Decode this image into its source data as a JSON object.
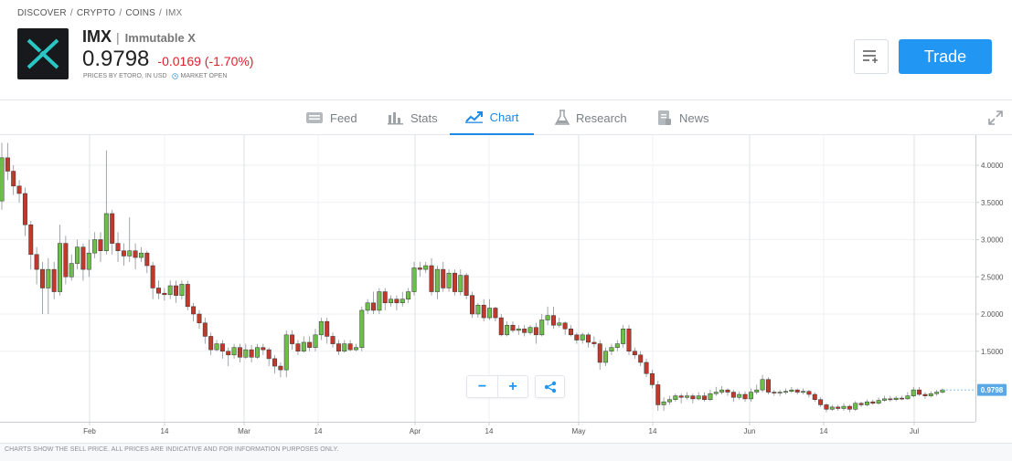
{
  "breadcrumb": [
    "DISCOVER",
    "CRYPTO",
    "COINS",
    "IMX"
  ],
  "header": {
    "ticker": "IMX",
    "name": "Immutable X",
    "price": "0.9798",
    "change": "-0.0169 (-1.70%)",
    "prices_note": "PRICES BY ETORO, IN USD",
    "market_status": "MARKET OPEN",
    "trade_label": "Trade",
    "change_color": "#e0202e",
    "accent_color": "#2196f3"
  },
  "tabs": [
    {
      "label": "Feed",
      "icon": "feed-icon"
    },
    {
      "label": "Stats",
      "icon": "stats-icon"
    },
    {
      "label": "Chart",
      "icon": "chart-icon",
      "active": true
    },
    {
      "label": "Research",
      "icon": "research-icon"
    },
    {
      "label": "News",
      "icon": "news-icon"
    }
  ],
  "chart_data": {
    "type": "candlestick",
    "y_ticks": [
      "4.0000",
      "3.5000",
      "3.0000",
      "2.5000",
      "2.0000",
      "1.5000"
    ],
    "x_ticks": [
      "Feb",
      "14",
      "Mar",
      "14",
      "Apr",
      "14",
      "May",
      "14",
      "Jun",
      "14",
      "Jul"
    ],
    "last_price_label": "0.9798",
    "up_color": "#6cc04a",
    "down_color": "#c0392b",
    "candles": [
      [
        3.52,
        4.1,
        4.3,
        3.4
      ],
      [
        4.1,
        3.92,
        4.3,
        3.8
      ],
      [
        3.92,
        3.72,
        4.0,
        3.6
      ],
      [
        3.72,
        3.62,
        3.8,
        3.5
      ],
      [
        3.62,
        3.2,
        3.7,
        3.05
      ],
      [
        3.2,
        2.8,
        3.25,
        2.6
      ],
      [
        2.8,
        2.6,
        2.9,
        2.4
      ],
      [
        2.6,
        2.35,
        2.7,
        2.0
      ],
      [
        2.35,
        2.6,
        2.75,
        2.0
      ],
      [
        2.6,
        2.3,
        2.7,
        2.2
      ],
      [
        2.3,
        2.95,
        3.2,
        2.25
      ],
      [
        2.95,
        2.5,
        3.05,
        2.4
      ],
      [
        2.5,
        2.68,
        2.8,
        2.45
      ],
      [
        2.68,
        2.9,
        3.0,
        2.6
      ],
      [
        2.9,
        2.6,
        2.95,
        2.45
      ],
      [
        2.6,
        2.82,
        3.0,
        2.5
      ],
      [
        2.82,
        3.0,
        3.1,
        2.75
      ],
      [
        3.0,
        2.85,
        3.1,
        2.7
      ],
      [
        2.85,
        3.35,
        4.2,
        2.8
      ],
      [
        3.35,
        2.95,
        3.4,
        2.8
      ],
      [
        2.95,
        2.85,
        3.1,
        2.7
      ],
      [
        2.85,
        2.78,
        2.95,
        2.65
      ],
      [
        2.78,
        2.85,
        3.3,
        2.7
      ],
      [
        2.85,
        2.76,
        2.95,
        2.6
      ],
      [
        2.76,
        2.82,
        2.9,
        2.7
      ],
      [
        2.82,
        2.65,
        2.85,
        2.55
      ],
      [
        2.65,
        2.35,
        2.7,
        2.2
      ],
      [
        2.35,
        2.28,
        2.45,
        2.2
      ],
      [
        2.28,
        2.26,
        2.35,
        2.18
      ],
      [
        2.26,
        2.38,
        2.45,
        2.2
      ],
      [
        2.38,
        2.25,
        2.45,
        2.15
      ],
      [
        2.25,
        2.4,
        2.45,
        2.2
      ],
      [
        2.4,
        2.1,
        2.45,
        2.05
      ],
      [
        2.1,
        2.0,
        2.15,
        1.9
      ],
      [
        2.0,
        1.88,
        2.05,
        1.8
      ],
      [
        1.88,
        1.7,
        1.95,
        1.6
      ],
      [
        1.7,
        1.52,
        1.75,
        1.45
      ],
      [
        1.52,
        1.6,
        1.65,
        1.5
      ],
      [
        1.6,
        1.5,
        1.65,
        1.4
      ],
      [
        1.5,
        1.45,
        1.55,
        1.3
      ],
      [
        1.45,
        1.55,
        1.6,
        1.4
      ],
      [
        1.55,
        1.42,
        1.6,
        1.35
      ],
      [
        1.42,
        1.52,
        1.6,
        1.4
      ],
      [
        1.52,
        1.42,
        1.58,
        1.35
      ],
      [
        1.42,
        1.55,
        1.6,
        1.4
      ],
      [
        1.55,
        1.52,
        1.6,
        1.45
      ],
      [
        1.52,
        1.4,
        1.55,
        1.3
      ],
      [
        1.4,
        1.3,
        1.45,
        1.2
      ],
      [
        1.3,
        1.25,
        1.35,
        1.15
      ],
      [
        1.25,
        1.72,
        1.78,
        1.15
      ],
      [
        1.72,
        1.6,
        1.78,
        1.52
      ],
      [
        1.6,
        1.5,
        1.65,
        1.45
      ],
      [
        1.5,
        1.62,
        1.7,
        1.48
      ],
      [
        1.62,
        1.55,
        1.7,
        1.5
      ],
      [
        1.55,
        1.72,
        1.8,
        1.5
      ],
      [
        1.72,
        1.9,
        1.95,
        1.65
      ],
      [
        1.9,
        1.7,
        1.95,
        1.6
      ],
      [
        1.7,
        1.6,
        1.75,
        1.55
      ],
      [
        1.6,
        1.5,
        1.65,
        1.45
      ],
      [
        1.5,
        1.6,
        1.65,
        1.48
      ],
      [
        1.6,
        1.52,
        1.65,
        1.5
      ],
      [
        1.52,
        1.55,
        1.6,
        1.5
      ],
      [
        1.55,
        2.05,
        2.1,
        1.5
      ],
      [
        2.05,
        2.15,
        2.2,
        2.0
      ],
      [
        2.15,
        2.05,
        2.3,
        2.0
      ],
      [
        2.05,
        2.3,
        2.35,
        2.0
      ],
      [
        2.3,
        2.15,
        2.35,
        2.05
      ],
      [
        2.15,
        2.2,
        2.25,
        2.1
      ],
      [
        2.2,
        2.15,
        2.25,
        2.05
      ],
      [
        2.15,
        2.2,
        2.3,
        2.1
      ],
      [
        2.2,
        2.3,
        2.35,
        2.15
      ],
      [
        2.3,
        2.62,
        2.7,
        2.25
      ],
      [
        2.62,
        2.6,
        2.7,
        2.5
      ],
      [
        2.6,
        2.65,
        2.7,
        2.55
      ],
      [
        2.65,
        2.3,
        2.75,
        2.25
      ],
      [
        2.3,
        2.6,
        2.65,
        2.2
      ],
      [
        2.6,
        2.35,
        2.7,
        2.3
      ],
      [
        2.35,
        2.55,
        2.6,
        2.3
      ],
      [
        2.55,
        2.3,
        2.6,
        2.25
      ],
      [
        2.3,
        2.52,
        2.6,
        2.25
      ],
      [
        2.52,
        2.25,
        2.55,
        2.2
      ],
      [
        2.25,
        2.0,
        2.3,
        1.95
      ],
      [
        2.0,
        2.12,
        2.15,
        1.95
      ],
      [
        2.12,
        1.95,
        2.2,
        1.9
      ],
      [
        1.95,
        2.08,
        2.2,
        1.92
      ],
      [
        2.08,
        1.95,
        2.1,
        1.9
      ],
      [
        1.95,
        1.72,
        2.0,
        1.7
      ],
      [
        1.72,
        1.85,
        1.9,
        1.7
      ],
      [
        1.85,
        1.78,
        1.9,
        1.75
      ],
      [
        1.78,
        1.8,
        1.85,
        1.72
      ],
      [
        1.8,
        1.75,
        1.85,
        1.7
      ],
      [
        1.75,
        1.82,
        1.85,
        1.72
      ],
      [
        1.82,
        1.72,
        1.88,
        1.6
      ],
      [
        1.72,
        1.92,
        2.0,
        1.7
      ],
      [
        1.92,
        1.98,
        2.1,
        1.85
      ],
      [
        1.98,
        1.85,
        2.1,
        1.8
      ],
      [
        1.85,
        1.88,
        1.95,
        1.82
      ],
      [
        1.88,
        1.8,
        1.9,
        1.72
      ],
      [
        1.8,
        1.72,
        1.85,
        1.7
      ],
      [
        1.72,
        1.65,
        1.75,
        1.6
      ],
      [
        1.65,
        1.72,
        1.75,
        1.6
      ],
      [
        1.72,
        1.62,
        1.75,
        1.55
      ],
      [
        1.62,
        1.6,
        1.7,
        1.55
      ],
      [
        1.6,
        1.35,
        1.65,
        1.25
      ],
      [
        1.35,
        1.5,
        1.55,
        1.3
      ],
      [
        1.5,
        1.55,
        1.6,
        1.45
      ],
      [
        1.55,
        1.6,
        1.65,
        1.5
      ],
      [
        1.6,
        1.8,
        1.85,
        1.55
      ],
      [
        1.8,
        1.5,
        1.85,
        1.45
      ],
      [
        1.5,
        1.45,
        1.55,
        1.4
      ],
      [
        1.45,
        1.35,
        1.5,
        1.3
      ],
      [
        1.35,
        1.2,
        1.4,
        1.15
      ],
      [
        1.2,
        1.05,
        1.25,
        1.0
      ],
      [
        1.05,
        0.78,
        1.1,
        0.7
      ],
      [
        0.78,
        0.82,
        0.88,
        0.7
      ],
      [
        0.82,
        0.85,
        0.9,
        0.78
      ],
      [
        0.85,
        0.9,
        0.93,
        0.82
      ],
      [
        0.9,
        0.88,
        0.93,
        0.8
      ],
      [
        0.88,
        0.9,
        0.95,
        0.85
      ],
      [
        0.9,
        0.86,
        0.93,
        0.8
      ],
      [
        0.86,
        0.9,
        0.95,
        0.84
      ],
      [
        0.9,
        0.85,
        0.95,
        0.82
      ],
      [
        0.85,
        0.93,
        0.98,
        0.83
      ],
      [
        0.93,
        0.95,
        1.02,
        0.9
      ],
      [
        0.95,
        0.98,
        1.03,
        0.92
      ],
      [
        0.98,
        0.95,
        1.0,
        0.9
      ],
      [
        0.95,
        0.88,
        0.98,
        0.82
      ],
      [
        0.88,
        0.92,
        0.96,
        0.85
      ],
      [
        0.92,
        0.86,
        0.96,
        0.82
      ],
      [
        0.86,
        0.95,
        1.0,
        0.82
      ],
      [
        0.95,
        0.98,
        1.05,
        0.92
      ],
      [
        0.98,
        1.12,
        1.18,
        0.95
      ],
      [
        1.12,
        0.95,
        1.15,
        0.92
      ],
      [
        0.95,
        0.94,
        0.98,
        0.9
      ],
      [
        0.94,
        0.95,
        0.98,
        0.9
      ],
      [
        0.95,
        0.96,
        1.0,
        0.92
      ],
      [
        0.96,
        0.98,
        1.02,
        0.94
      ],
      [
        0.98,
        0.95,
        1.0,
        0.92
      ],
      [
        0.95,
        0.96,
        1.0,
        0.92
      ],
      [
        0.96,
        0.92,
        0.98,
        0.88
      ],
      [
        0.92,
        0.85,
        0.95,
        0.82
      ],
      [
        0.85,
        0.78,
        0.88,
        0.75
      ],
      [
        0.78,
        0.72,
        0.8,
        0.68
      ],
      [
        0.72,
        0.75,
        0.78,
        0.7
      ],
      [
        0.75,
        0.73,
        0.78,
        0.7
      ],
      [
        0.73,
        0.76,
        0.8,
        0.7
      ],
      [
        0.76,
        0.72,
        0.78,
        0.68
      ],
      [
        0.72,
        0.8,
        0.83,
        0.7
      ],
      [
        0.8,
        0.78,
        0.82,
        0.75
      ],
      [
        0.78,
        0.82,
        0.85,
        0.76
      ],
      [
        0.82,
        0.8,
        0.85,
        0.78
      ],
      [
        0.8,
        0.84,
        0.88,
        0.78
      ],
      [
        0.84,
        0.86,
        0.9,
        0.82
      ],
      [
        0.86,
        0.85,
        0.9,
        0.82
      ],
      [
        0.85,
        0.87,
        0.9,
        0.83
      ],
      [
        0.87,
        0.86,
        0.9,
        0.84
      ],
      [
        0.86,
        0.9,
        0.95,
        0.85
      ],
      [
        0.9,
        0.98,
        1.02,
        0.88
      ],
      [
        0.98,
        0.92,
        1.02,
        0.9
      ],
      [
        0.92,
        0.9,
        0.95,
        0.86
      ],
      [
        0.9,
        0.93,
        0.96,
        0.88
      ],
      [
        0.93,
        0.95,
        0.98,
        0.9
      ],
      [
        0.95,
        0.98,
        1.0,
        0.93
      ]
    ]
  },
  "chart_controls": {
    "zoom_out": "−",
    "zoom_in": "+"
  },
  "footer": {
    "disclaimer": "CHARTS SHOW THE SELL PRICE. ALL PRICES ARE INDICATIVE AND FOR INFORMATION PURPOSES ONLY."
  }
}
